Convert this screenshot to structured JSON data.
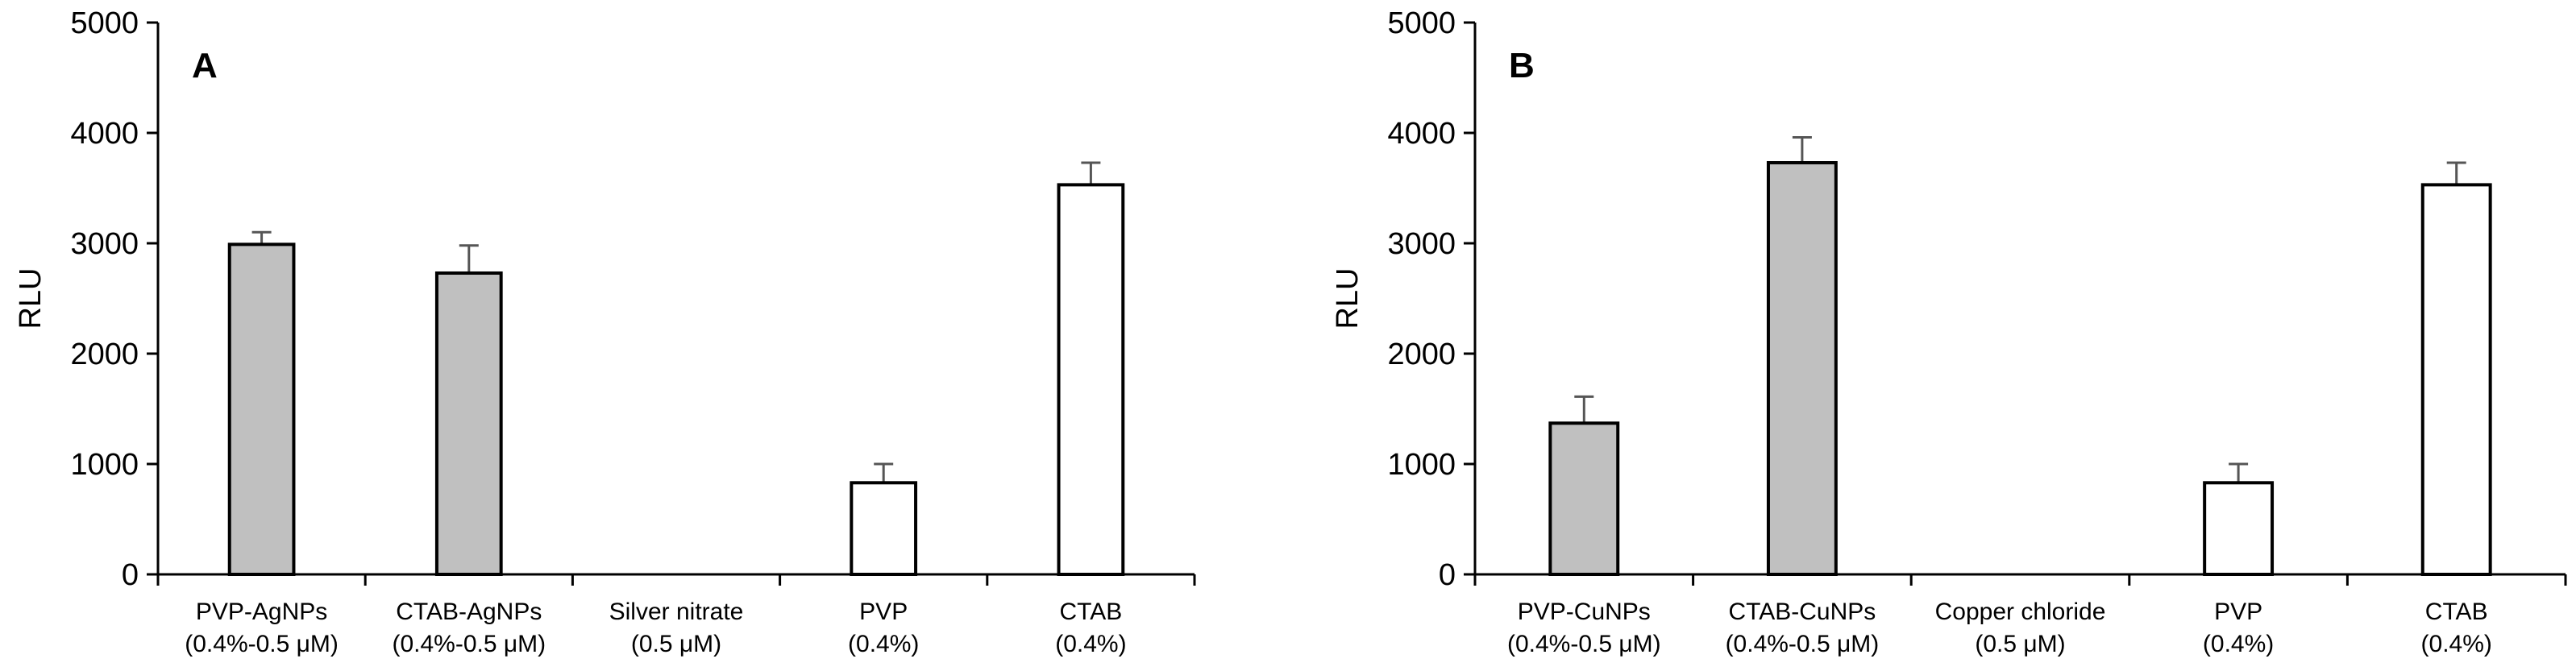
{
  "chart_data": [
    {
      "type": "bar",
      "panel_label": "A",
      "ylabel": "RLU",
      "ylim": [
        0,
        5000
      ],
      "yticks": [
        "0",
        "1000",
        "2000",
        "3000",
        "4000",
        "5000"
      ],
      "grid": false,
      "categories": [
        {
          "line1": "PVP-AgNPs",
          "line2": "(0.4%-0.5 μM)"
        },
        {
          "line1": "CTAB-AgNPs",
          "line2": "(0.4%-0.5 μM)"
        },
        {
          "line1": "Silver nitrate",
          "line2": "(0.5 μM)"
        },
        {
          "line1": "PVP",
          "line2": "(0.4%)"
        },
        {
          "line1": "CTAB",
          "line2": "(0.4%)"
        }
      ],
      "values": [
        2990,
        2730,
        0,
        830,
        3530
      ],
      "errors": [
        110,
        250,
        0,
        170,
        200
      ],
      "bar_colors": [
        "#c0c0c0",
        "#c0c0c0",
        "#c0c0c0",
        "#ffffff",
        "#ffffff"
      ]
    },
    {
      "type": "bar",
      "panel_label": "B",
      "ylabel": "RLU",
      "ylim": [
        0,
        5000
      ],
      "yticks": [
        "0",
        "1000",
        "2000",
        "3000",
        "4000",
        "5000"
      ],
      "grid": false,
      "categories": [
        {
          "line1": "PVP-CuNPs",
          "line2": "(0.4%-0.5 μM)"
        },
        {
          "line1": "CTAB-CuNPs",
          "line2": "(0.4%-0.5 μM)"
        },
        {
          "line1": "Copper chloride",
          "line2": "(0.5 μM)"
        },
        {
          "line1": "PVP",
          "line2": "(0.4%)"
        },
        {
          "line1": "CTAB",
          "line2": "(0.4%)"
        }
      ],
      "values": [
        1370,
        3730,
        0,
        830,
        3530
      ],
      "errors": [
        240,
        230,
        0,
        170,
        200
      ],
      "bar_colors": [
        "#c0c0c0",
        "#c0c0c0",
        "#c0c0c0",
        "#ffffff",
        "#ffffff"
      ]
    }
  ]
}
